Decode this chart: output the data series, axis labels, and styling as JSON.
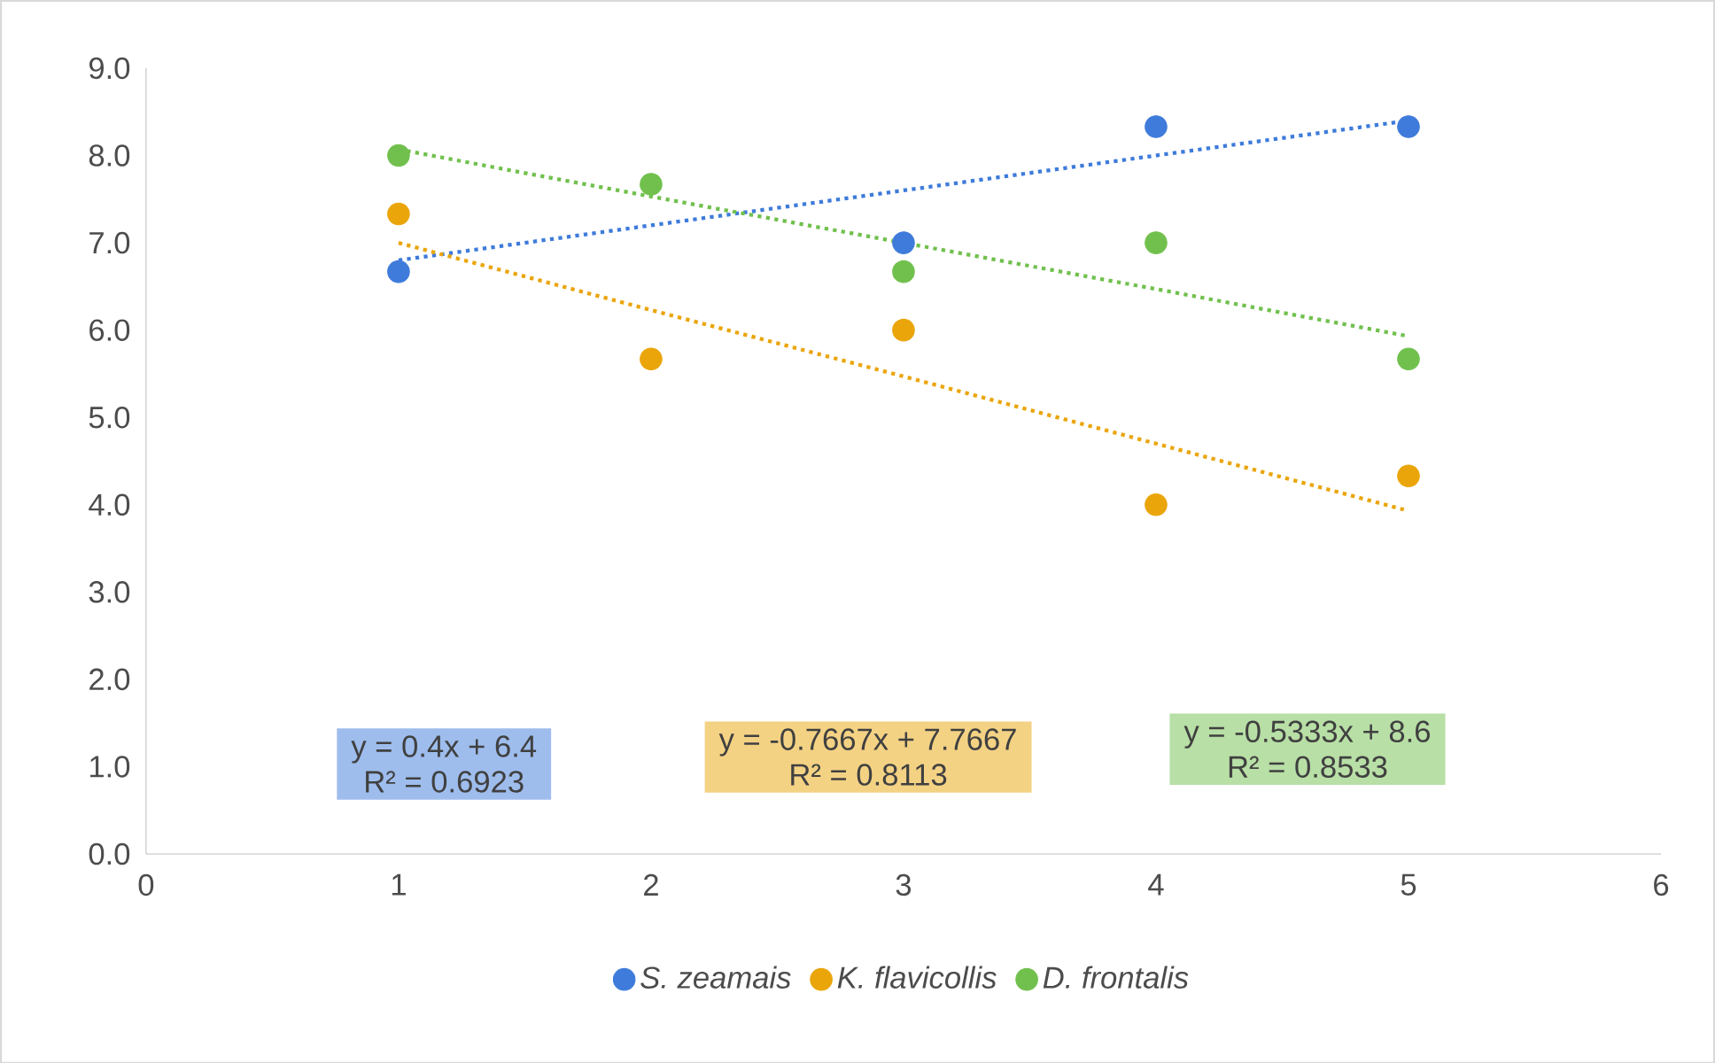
{
  "chart_data": {
    "type": "scatter",
    "legend": "bottom",
    "grid": false,
    "xlim": [
      0,
      6
    ],
    "xticks": [
      0,
      1,
      2,
      3,
      4,
      5,
      6
    ],
    "ylim": [
      0,
      9
    ],
    "yticks": [
      {
        "value": 0,
        "label": "0.0"
      },
      {
        "value": 1,
        "label": "1.0"
      },
      {
        "value": 2,
        "label": "2.0"
      },
      {
        "value": 3,
        "label": "3.0"
      },
      {
        "value": 4,
        "label": "4.0"
      },
      {
        "value": 5,
        "label": "5.0"
      },
      {
        "value": 6,
        "label": "6.0"
      },
      {
        "value": 7,
        "label": "7.0"
      },
      {
        "value": 8,
        "label": "8.0"
      },
      {
        "value": 9,
        "label": "9.0"
      }
    ],
    "x": [
      1,
      2,
      3,
      4,
      5
    ],
    "series": [
      {
        "name": "S. zeamais",
        "marker": "circle",
        "color": "#3e7bdb",
        "values": [
          6.67,
          null,
          7.0,
          8.33,
          8.33
        ]
      },
      {
        "name": "K. flavicollis",
        "marker": "circle",
        "color": "#eaa50a",
        "values": [
          7.33,
          5.67,
          6.0,
          4.0,
          4.33
        ]
      },
      {
        "name": "D. frontalis",
        "marker": "circle",
        "color": "#71c04e",
        "values": [
          8.0,
          7.67,
          6.67,
          7.0,
          5.67
        ]
      },
      {
        "type": "line",
        "line_style": "dotted",
        "marker": "none",
        "color": "#3e7bdb",
        "values": [
          6.8,
          7.2,
          7.6,
          8.0,
          8.4
        ]
      },
      {
        "type": "line",
        "line_style": "dotted",
        "marker": "none",
        "color": "#eaa50a",
        "values": [
          7.0,
          6.23,
          5.47,
          4.7,
          3.93
        ]
      },
      {
        "type": "line",
        "line_style": "dotted",
        "marker": "none",
        "color": "#71c04e",
        "values": [
          8.07,
          7.53,
          7.0,
          6.47,
          5.93
        ]
      }
    ],
    "annotations": [
      "y = 0.4x + 6.4",
      "R² = 0.6923",
      "y = -0.7667x + 7.7667",
      "R² = 0.8113",
      "y = -0.5333x + 8.6",
      "R² = 0.8533"
    ]
  }
}
